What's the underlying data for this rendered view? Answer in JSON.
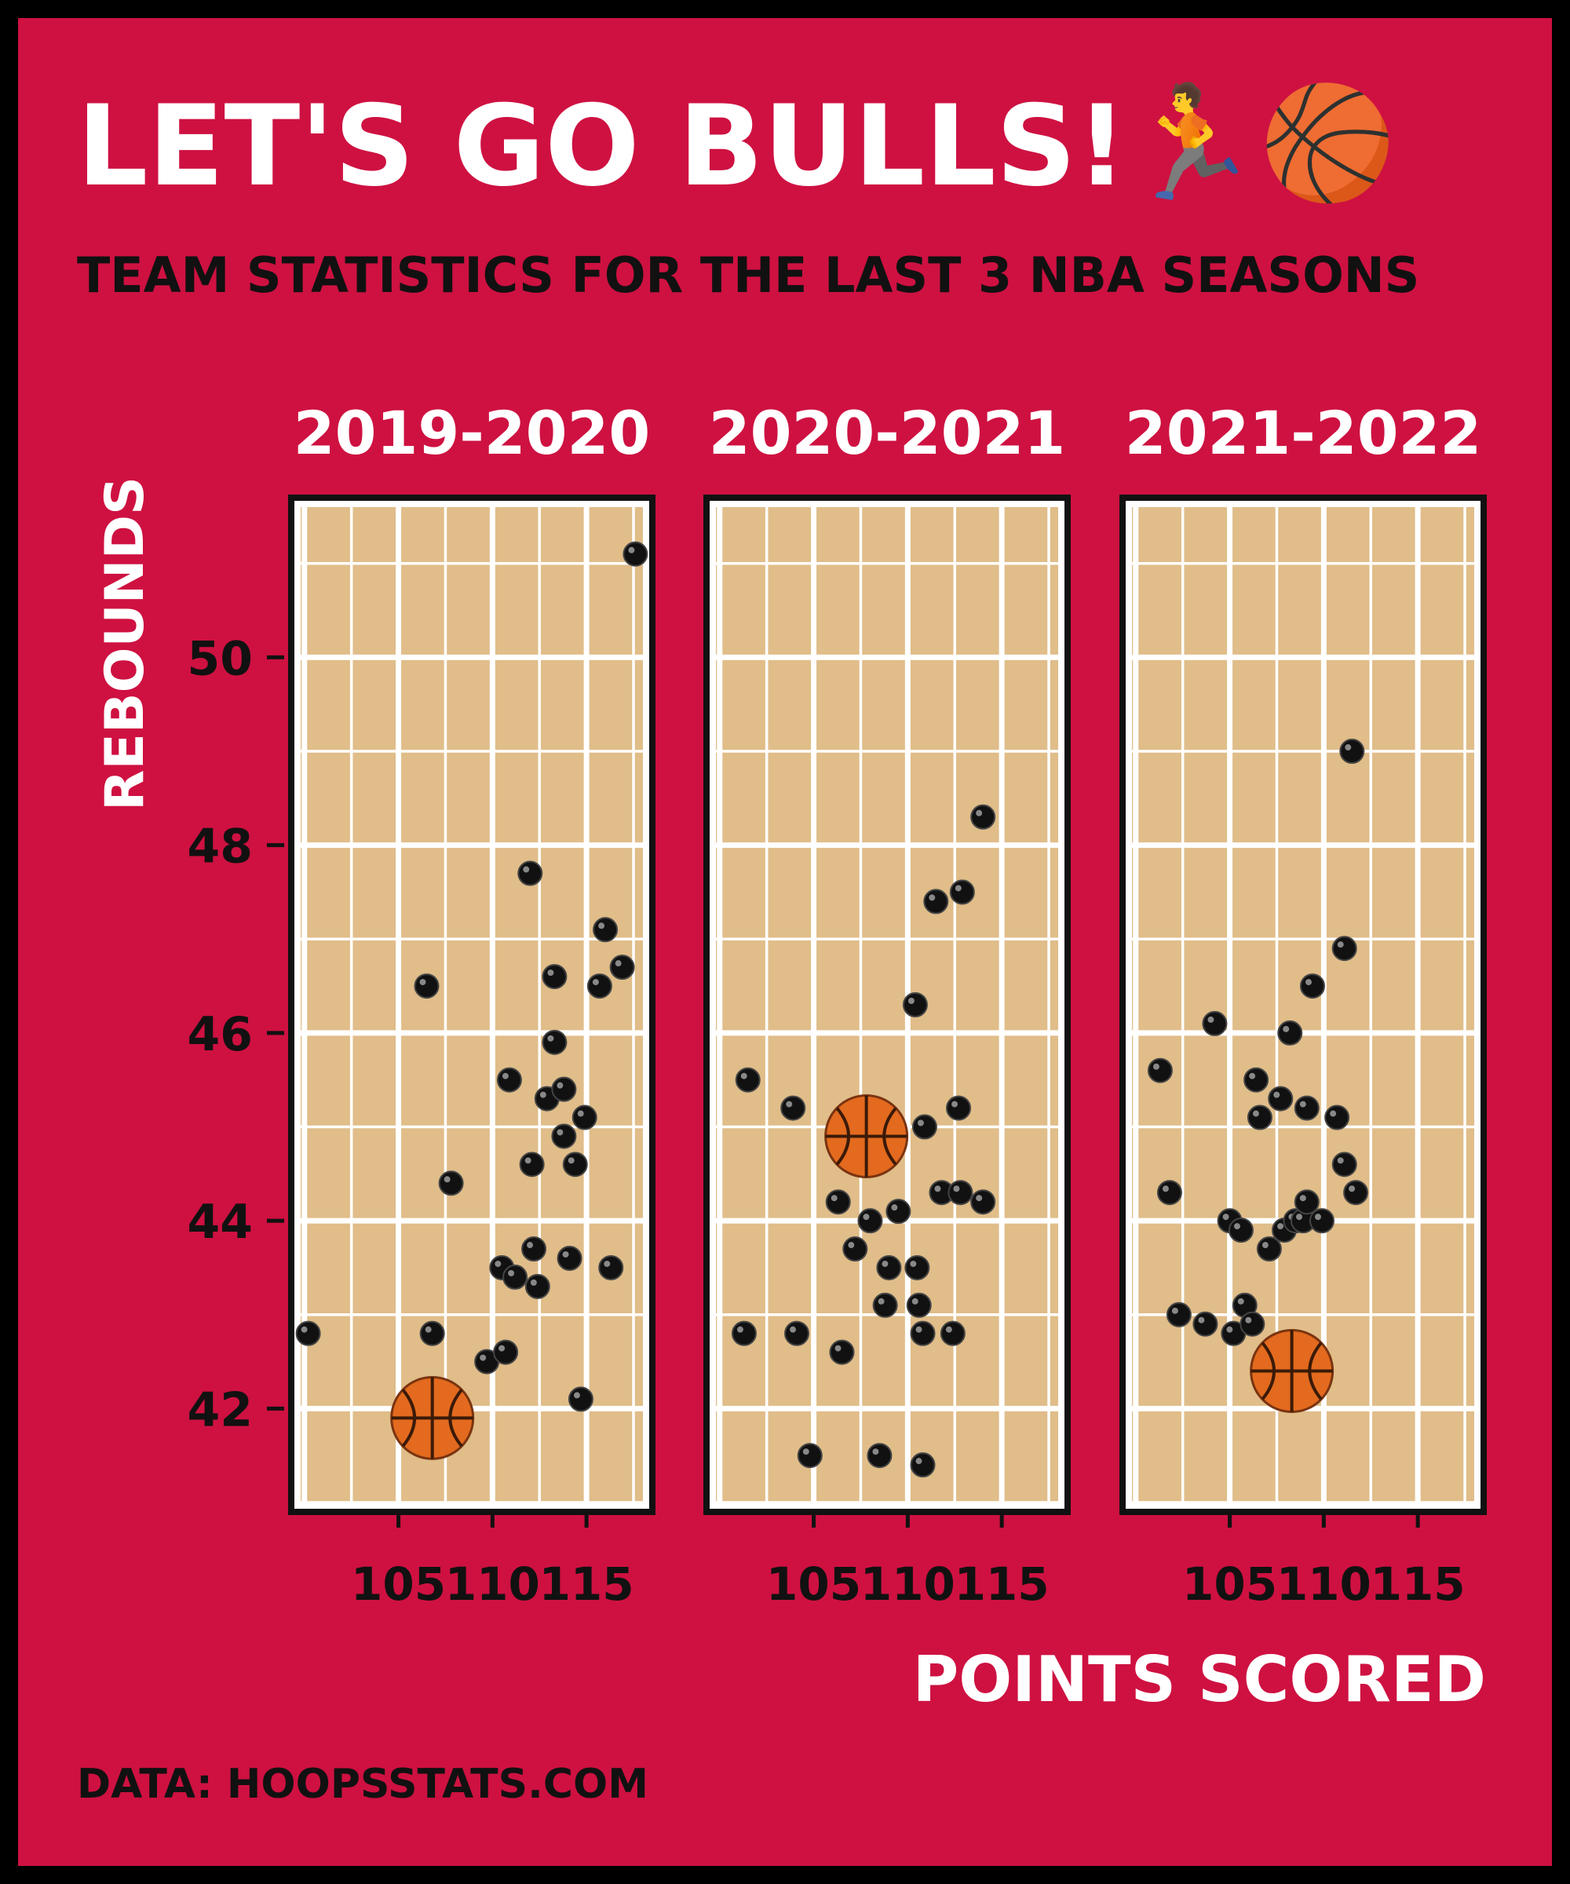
{
  "title": "LET'S GO BULLS!",
  "title_emoji": "🏃🏀",
  "subtitle": "TEAM STATISTICS FOR THE LAST 3 NBA SEASONS",
  "caption": "DATA: HOOPSSTATS.COM",
  "colors": {
    "background": "#CE1141",
    "court": "#E0BD89",
    "grid": "#FFFFFF",
    "point": "#111111",
    "ball": "#E36A1E",
    "text_light": "#FFFFFF",
    "text_dark": "#111111"
  },
  "chart_data": {
    "type": "scatter",
    "xlabel": "POINTS SCORED",
    "ylabel": "REBOUNDS",
    "xlim": [
      99.8,
      118
    ],
    "ylim": [
      41,
      51.6
    ],
    "xticks": [
      105,
      110,
      115
    ],
    "yticks": [
      42,
      44,
      46,
      48,
      50
    ],
    "grid": true,
    "marker_icon": "basketball-icon",
    "panels": [
      {
        "season": "2019-2020",
        "points": [
          [
            100.2,
            42.8
          ],
          [
            106.5,
            46.5
          ],
          [
            107.8,
            44.4
          ],
          [
            106.8,
            42.8
          ],
          [
            108.0,
            41.7
          ],
          [
            109.7,
            42.5
          ],
          [
            110.5,
            43.5
          ],
          [
            111.2,
            43.4
          ],
          [
            110.7,
            42.6
          ],
          [
            110.9,
            45.5
          ],
          [
            112.0,
            47.7
          ],
          [
            112.1,
            44.6
          ],
          [
            112.2,
            43.7
          ],
          [
            112.4,
            43.3
          ],
          [
            112.9,
            45.3
          ],
          [
            113.3,
            46.6
          ],
          [
            113.3,
            45.9
          ],
          [
            113.8,
            45.4
          ],
          [
            113.8,
            44.9
          ],
          [
            114.1,
            43.6
          ],
          [
            114.4,
            44.6
          ],
          [
            114.7,
            42.1
          ],
          [
            114.9,
            45.1
          ],
          [
            115.7,
            46.5
          ],
          [
            116.0,
            47.1
          ],
          [
            116.3,
            43.5
          ],
          [
            116.9,
            46.7
          ],
          [
            117.6,
            51.1
          ]
        ],
        "balls": [
          [
            106.8,
            41.9
          ]
        ]
      },
      {
        "season": "2020-2021",
        "points": [
          [
            101.3,
            42.8
          ],
          [
            101.5,
            45.5
          ],
          [
            103.9,
            45.2
          ],
          [
            104.1,
            42.8
          ],
          [
            104.8,
            41.5
          ],
          [
            106.3,
            44.2
          ],
          [
            106.5,
            42.6
          ],
          [
            107.2,
            43.7
          ],
          [
            108.0,
            44.0
          ],
          [
            108.3,
            45.0
          ],
          [
            108.5,
            41.5
          ],
          [
            108.8,
            43.1
          ],
          [
            109.0,
            43.5
          ],
          [
            109.5,
            44.1
          ],
          [
            110.4,
            46.3
          ],
          [
            110.5,
            43.5
          ],
          [
            110.6,
            43.1
          ],
          [
            110.8,
            42.8
          ],
          [
            110.8,
            41.4
          ],
          [
            110.9,
            45.0
          ],
          [
            111.5,
            47.4
          ],
          [
            111.8,
            44.3
          ],
          [
            112.4,
            42.8
          ],
          [
            112.7,
            45.2
          ],
          [
            112.8,
            44.3
          ],
          [
            112.9,
            47.5
          ],
          [
            114.0,
            48.3
          ],
          [
            114.0,
            44.2
          ]
        ],
        "balls": [
          [
            107.8,
            44.9
          ]
        ]
      },
      {
        "season": "2021-2022",
        "points": [
          [
            101.3,
            45.6
          ],
          [
            101.8,
            44.3
          ],
          [
            102.3,
            43.0
          ],
          [
            103.7,
            42.9
          ],
          [
            104.2,
            46.1
          ],
          [
            105.0,
            44.0
          ],
          [
            105.2,
            42.8
          ],
          [
            105.6,
            43.9
          ],
          [
            105.8,
            43.1
          ],
          [
            106.2,
            42.9
          ],
          [
            106.4,
            45.5
          ],
          [
            106.6,
            45.1
          ],
          [
            107.1,
            43.7
          ],
          [
            107.7,
            45.3
          ],
          [
            107.9,
            43.9
          ],
          [
            108.2,
            46.0
          ],
          [
            108.5,
            44.0
          ],
          [
            108.9,
            44.0
          ],
          [
            109.1,
            44.2
          ],
          [
            109.1,
            45.2
          ],
          [
            109.4,
            46.5
          ],
          [
            109.9,
            44.0
          ],
          [
            110.7,
            45.1
          ],
          [
            111.1,
            44.6
          ],
          [
            111.1,
            46.9
          ],
          [
            111.5,
            49.0
          ],
          [
            111.7,
            44.3
          ]
        ],
        "balls": [
          [
            108.3,
            42.4
          ]
        ]
      }
    ]
  }
}
